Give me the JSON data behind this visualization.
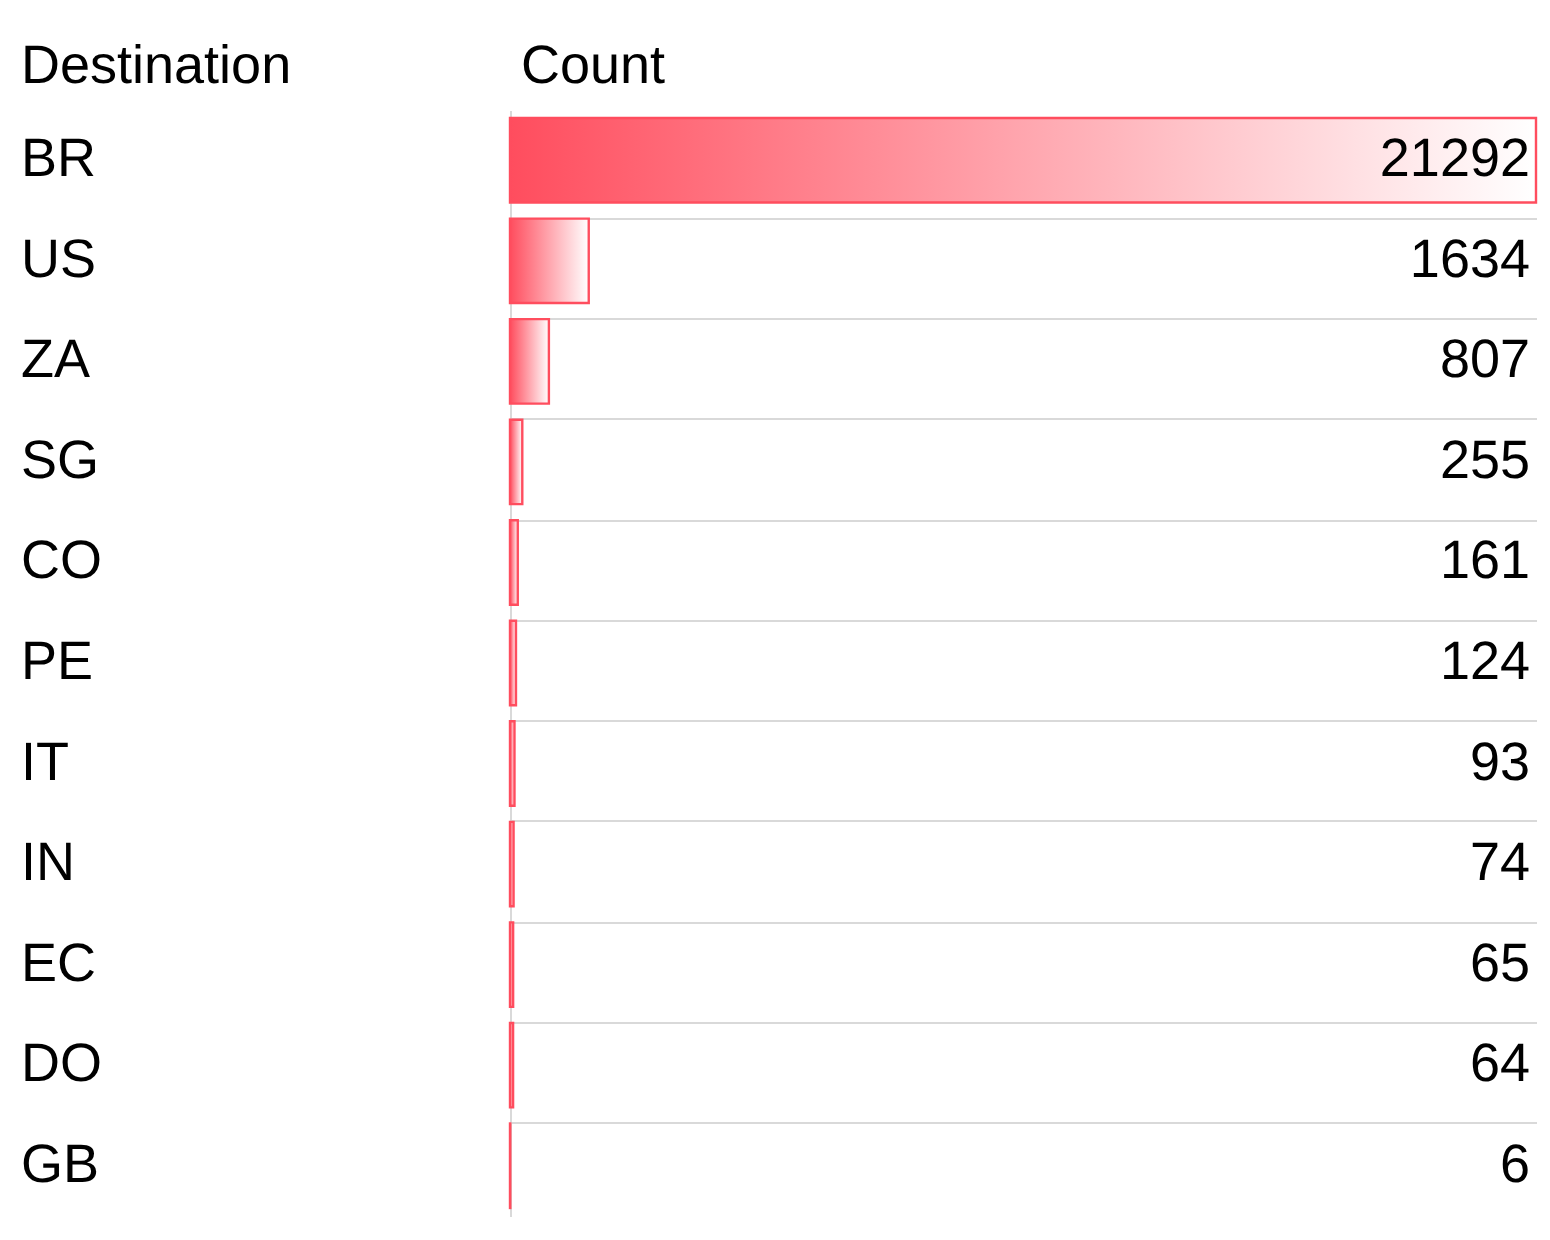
{
  "chart_data": {
    "type": "bar",
    "orientation": "horizontal",
    "ylabel": "Destination",
    "xlabel": "Count",
    "categories": [
      "BR",
      "US",
      "ZA",
      "SG",
      "CO",
      "PE",
      "IT",
      "IN",
      "EC",
      "DO",
      "GB"
    ],
    "values": [
      21292,
      1634,
      807,
      255,
      161,
      124,
      93,
      74,
      65,
      64,
      6
    ],
    "color": "#ff4d5e",
    "data_labels": true,
    "grid": "y"
  }
}
